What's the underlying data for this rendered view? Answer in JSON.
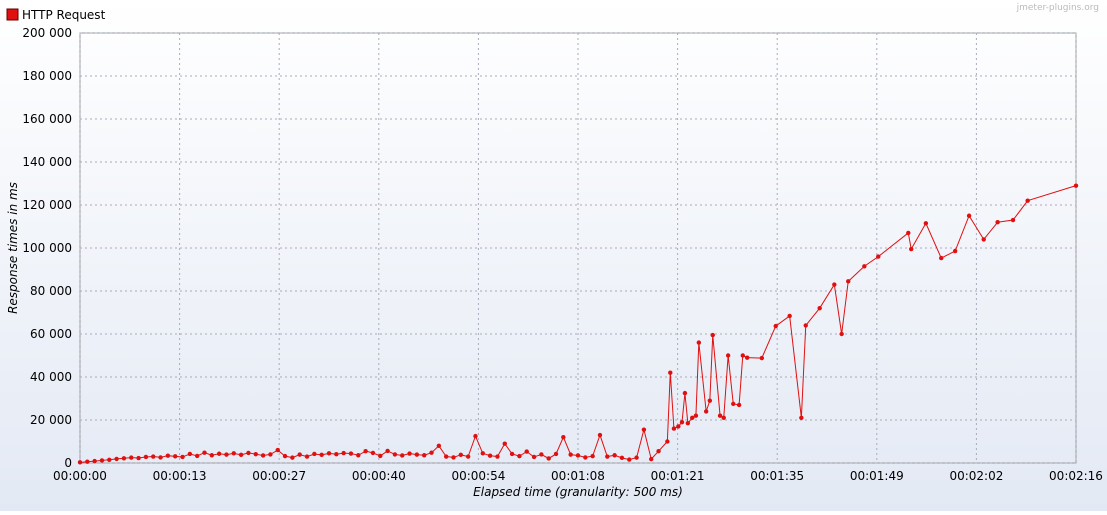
{
  "chart_data": {
    "type": "line",
    "legend": "top-left",
    "grid": true,
    "xlabel": "Elapsed time (granularity: 500 ms)",
    "ylabel": "Response times in ms",
    "watermark": "jmeter-plugins.org",
    "xlim": [
      0,
      136
    ],
    "xticks": [
      {
        "value": 0,
        "label": "00:00:00"
      },
      {
        "value": 13.6,
        "label": "00:00:13"
      },
      {
        "value": 27.2,
        "label": "00:00:27"
      },
      {
        "value": 40.8,
        "label": "00:00:40"
      },
      {
        "value": 54.4,
        "label": "00:00:54"
      },
      {
        "value": 68,
        "label": "00:01:08"
      },
      {
        "value": 81.6,
        "label": "00:01:21"
      },
      {
        "value": 95.2,
        "label": "00:01:35"
      },
      {
        "value": 108.8,
        "label": "00:01:49"
      },
      {
        "value": 122.4,
        "label": "00:02:02"
      },
      {
        "value": 136,
        "label": "00:02:16"
      }
    ],
    "ylim": [
      0,
      200000
    ],
    "yticks": [
      0,
      {
        "value": 20000,
        "label": "20 000"
      },
      {
        "value": 40000,
        "label": "40 000"
      },
      {
        "value": 60000,
        "label": "60 000"
      },
      {
        "value": 80000,
        "label": "80 000"
      },
      {
        "value": 100000,
        "label": "100 000"
      },
      {
        "value": 120000,
        "label": "120 000"
      },
      {
        "value": 140000,
        "label": "140 000"
      },
      {
        "value": 160000,
        "label": "160 000"
      },
      {
        "value": 180000,
        "label": "180 000"
      },
      {
        "value": 200000,
        "label": "200 000"
      }
    ],
    "x": [
      0,
      1,
      2,
      3,
      4,
      5,
      6,
      7,
      8,
      9,
      10,
      11,
      12,
      13,
      14,
      15,
      16,
      17,
      18,
      19,
      20,
      21,
      22,
      23,
      24,
      25,
      26,
      27,
      28,
      29,
      30,
      31,
      32,
      33,
      34,
      35,
      36,
      37,
      38,
      39,
      40,
      41,
      42,
      43,
      44,
      45,
      46,
      47,
      48,
      49,
      50,
      51,
      52,
      53,
      54,
      55,
      56,
      57,
      58,
      59,
      60,
      61,
      62,
      63,
      64,
      65,
      66,
      67,
      68,
      69,
      70,
      71,
      72,
      73,
      74,
      75,
      76,
      77,
      78,
      79,
      80.2,
      80.6,
      81.1,
      81.7,
      82.2,
      82.6,
      83.0,
      83.6,
      84.1,
      84.5,
      85.5,
      86.0,
      86.4,
      87.4,
      87.9,
      88.5,
      89.2,
      90.0,
      90.5,
      91.1,
      93.1,
      95.0,
      96.9,
      98.5,
      99.1,
      101.0,
      103.0,
      104.0,
      104.9,
      107.1,
      109.0,
      113.1,
      113.5,
      115.5,
      117.6,
      119.5,
      121.4,
      123.4,
      125.3,
      127.4,
      129.4,
      136.0
    ],
    "series": [
      {
        "name": "HTTP Request",
        "color": "#e01010",
        "values": [
          300,
          600,
          900,
          1200,
          1500,
          1900,
          2200,
          2500,
          2300,
          2800,
          3000,
          2600,
          3400,
          3100,
          2800,
          4200,
          3300,
          4800,
          3600,
          4300,
          3900,
          4500,
          3800,
          4700,
          4100,
          3500,
          4000,
          6000,
          3200,
          2500,
          3900,
          3000,
          4200,
          3800,
          4500,
          4100,
          4600,
          4400,
          3600,
          5500,
          4700,
          3300,
          5600,
          4000,
          3500,
          4400,
          3900,
          3600,
          4800,
          8000,
          3000,
          2600,
          3800,
          3000,
          12500,
          4500,
          3400,
          3000,
          9000,
          4200,
          3200,
          5300,
          2800,
          4000,
          2100,
          4200,
          12000,
          3900,
          3500,
          2600,
          3200,
          13000,
          3000,
          3600,
          2400,
          1600,
          2500,
          15500,
          1800,
          5500,
          10000,
          42000,
          16000,
          17000,
          19000,
          32500,
          18500,
          21000,
          22000,
          56000,
          24000,
          29000,
          59500,
          22000,
          21000,
          50000,
          27500,
          27000,
          50000,
          49000,
          48800,
          63700,
          68400,
          21000,
          64000,
          72000,
          83000,
          60000,
          84500,
          91500,
          96000,
          107000,
          99500,
          111500,
          95300,
          98600,
          115000,
          104000,
          112000,
          113000,
          122000,
          129000
        ]
      }
    ]
  }
}
